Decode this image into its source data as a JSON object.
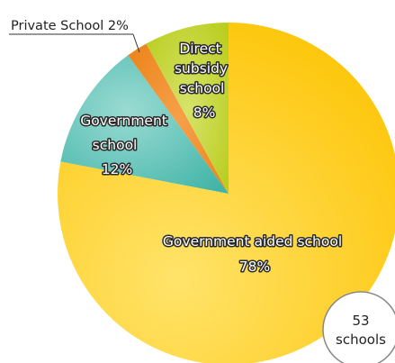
{
  "chart_data": {
    "type": "pie",
    "slices": [
      {
        "label": "Government aided school",
        "value": 78,
        "value_label": "78%",
        "color": "#fdc300"
      },
      {
        "label": "Government school",
        "value": 12,
        "value_label": "12%",
        "color": "#4ab9ad"
      },
      {
        "label": "Private School",
        "value": 2,
        "value_label": "2%",
        "color": "#f08a1c"
      },
      {
        "label": "Direct subsidy school",
        "value": 8,
        "value_label": "8%",
        "color": "#b9cf17"
      }
    ],
    "callout": {
      "text": "Private School 2%"
    },
    "badge": {
      "count": "53",
      "unit": "schools"
    }
  }
}
